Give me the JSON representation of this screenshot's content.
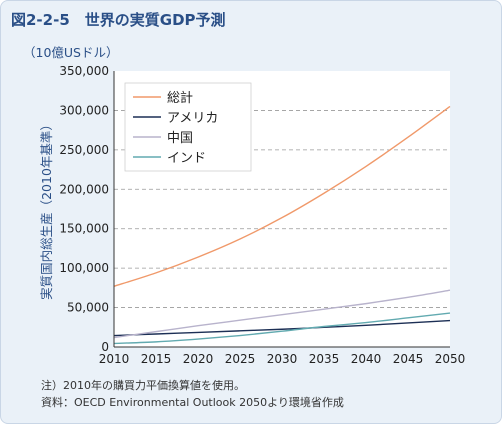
{
  "header": {
    "title": "図2-2-5　世界の実質GDP予測",
    "unit": "（10億USドル）"
  },
  "notes": {
    "note": "注）2010年の購買力平価換算値を使用。",
    "source": "資料：OECD Environmental Outlook 2050より環境省作成"
  },
  "colors": {
    "background": "#eaf1f8",
    "title": "#2a4f87",
    "total": "#f0996a",
    "usa": "#1c2f55",
    "china": "#b8b3cc",
    "india": "#62aab0"
  },
  "chart_data": {
    "type": "line",
    "title": "世界の実質GDP予測",
    "xlabel": "",
    "ylabel": "実質国内総生産（2010年基準）",
    "xlim": [
      2010,
      2050
    ],
    "ylim": [
      0,
      350000
    ],
    "x_ticks": [
      "2010",
      "2015",
      "2020",
      "2025",
      "2030",
      "2035",
      "2040",
      "2045",
      "2050"
    ],
    "y_ticks": [
      "0",
      "50,000",
      "100,000",
      "150,000",
      "200,000",
      "250,000",
      "300,000",
      "350,000"
    ],
    "grid": "horizontal dashed",
    "legend_position": "top-left",
    "x": [
      2010,
      2015,
      2020,
      2025,
      2030,
      2035,
      2040,
      2045,
      2050
    ],
    "series": [
      {
        "name": "総計",
        "color": "#f0996a",
        "values": [
          77000,
          94000,
          114000,
          137000,
          164000,
          195000,
          229000,
          266000,
          305000
        ]
      },
      {
        "name": "アメリカ",
        "color": "#1c2f55",
        "values": [
          14500,
          16500,
          18500,
          20500,
          22500,
          25000,
          27500,
          30500,
          33500
        ]
      },
      {
        "name": "中国",
        "color": "#b8b3cc",
        "values": [
          12000,
          19500,
          27000,
          34000,
          41000,
          48000,
          55000,
          63000,
          72000
        ]
      },
      {
        "name": "インド",
        "color": "#62aab0",
        "values": [
          4500,
          6500,
          10000,
          14500,
          20000,
          26000,
          31000,
          37000,
          43000
        ]
      }
    ]
  }
}
